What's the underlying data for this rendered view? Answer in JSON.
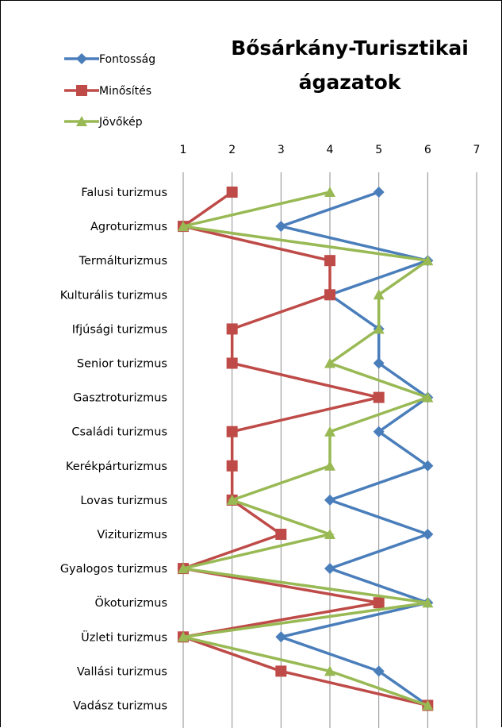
{
  "chart_data": {
    "type": "line",
    "title_lines": [
      "Bősárkány-Turisztikai",
      "ágazatok"
    ],
    "categories": [
      "Falusi turizmus",
      "Agroturizmus",
      "Termálturizmus",
      "Kulturális turizmus",
      "Ifjúsági turizmus",
      "Senior turizmus",
      "Gasztroturizmus",
      "Családi turizmus",
      "Kerékpárturizmus",
      "Lovas turizmus",
      "Viziturizmus",
      "Gyalogos turizmus",
      "Ökoturizmus",
      "Üzleti turizmus",
      "Vallási turizmus",
      "Vadász turizmus"
    ],
    "value_axis": {
      "min": 1,
      "max": 7,
      "ticks": [
        1,
        2,
        3,
        4,
        5,
        6,
        7
      ],
      "position": "top",
      "grid": true
    },
    "series": [
      {
        "name": "Fontosság",
        "color": "#4a7ebb",
        "marker": "diamond",
        "values": [
          5,
          3,
          6,
          4,
          5,
          5,
          6,
          5,
          6,
          4,
          6,
          4,
          6,
          3,
          5,
          6
        ]
      },
      {
        "name": "Minősítés",
        "color": "#be4b48",
        "marker": "square",
        "values": [
          2,
          1,
          4,
          4,
          2,
          2,
          5,
          2,
          2,
          2,
          3,
          1,
          5,
          1,
          3,
          6
        ]
      },
      {
        "name": "Jövőkép",
        "color": "#98b954",
        "marker": "triangle",
        "values": [
          4,
          1,
          6,
          5,
          5,
          4,
          6,
          4,
          4,
          2,
          4,
          1,
          6,
          1,
          4,
          6
        ]
      }
    ],
    "legend": "top-left"
  }
}
